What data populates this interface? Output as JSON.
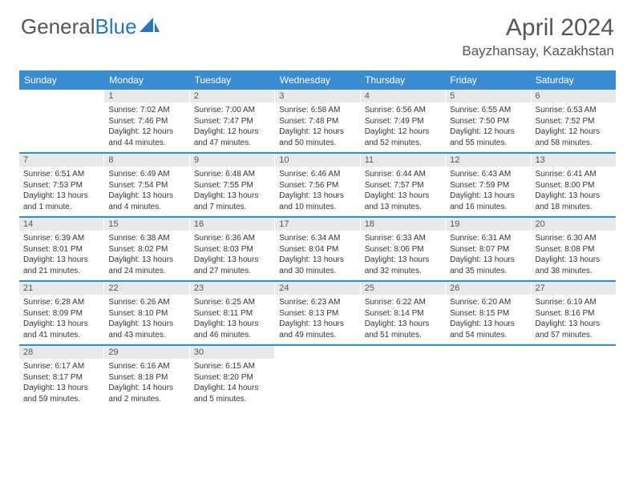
{
  "brand": {
    "part1": "General",
    "part2": "Blue"
  },
  "title": "April 2024",
  "location": "Bayzhansay, Kazakhstan",
  "colors": {
    "header_bg": "#3b8bd0",
    "header_text": "#ffffff",
    "daynum_bg": "#e8e8e8",
    "text": "#333333",
    "brand_gray": "#555555",
    "brand_blue": "#2976bb",
    "week_border": "#3b8bd0"
  },
  "typography": {
    "title_fontsize": 30,
    "location_fontsize": 17,
    "dayheader_fontsize": 12,
    "daynum_fontsize": 11,
    "cell_fontsize": 10
  },
  "day_names": [
    "Sunday",
    "Monday",
    "Tuesday",
    "Wednesday",
    "Thursday",
    "Friday",
    "Saturday"
  ],
  "weeks": [
    [
      {
        "n": "",
        "sr": "",
        "ss": "",
        "dl": ""
      },
      {
        "n": "1",
        "sr": "Sunrise: 7:02 AM",
        "ss": "Sunset: 7:46 PM",
        "dl": "Daylight: 12 hours and 44 minutes."
      },
      {
        "n": "2",
        "sr": "Sunrise: 7:00 AM",
        "ss": "Sunset: 7:47 PM",
        "dl": "Daylight: 12 hours and 47 minutes."
      },
      {
        "n": "3",
        "sr": "Sunrise: 6:58 AM",
        "ss": "Sunset: 7:48 PM",
        "dl": "Daylight: 12 hours and 50 minutes."
      },
      {
        "n": "4",
        "sr": "Sunrise: 6:56 AM",
        "ss": "Sunset: 7:49 PM",
        "dl": "Daylight: 12 hours and 52 minutes."
      },
      {
        "n": "5",
        "sr": "Sunrise: 6:55 AM",
        "ss": "Sunset: 7:50 PM",
        "dl": "Daylight: 12 hours and 55 minutes."
      },
      {
        "n": "6",
        "sr": "Sunrise: 6:53 AM",
        "ss": "Sunset: 7:52 PM",
        "dl": "Daylight: 12 hours and 58 minutes."
      }
    ],
    [
      {
        "n": "7",
        "sr": "Sunrise: 6:51 AM",
        "ss": "Sunset: 7:53 PM",
        "dl": "Daylight: 13 hours and 1 minute."
      },
      {
        "n": "8",
        "sr": "Sunrise: 6:49 AM",
        "ss": "Sunset: 7:54 PM",
        "dl": "Daylight: 13 hours and 4 minutes."
      },
      {
        "n": "9",
        "sr": "Sunrise: 6:48 AM",
        "ss": "Sunset: 7:55 PM",
        "dl": "Daylight: 13 hours and 7 minutes."
      },
      {
        "n": "10",
        "sr": "Sunrise: 6:46 AM",
        "ss": "Sunset: 7:56 PM",
        "dl": "Daylight: 13 hours and 10 minutes."
      },
      {
        "n": "11",
        "sr": "Sunrise: 6:44 AM",
        "ss": "Sunset: 7:57 PM",
        "dl": "Daylight: 13 hours and 13 minutes."
      },
      {
        "n": "12",
        "sr": "Sunrise: 6:43 AM",
        "ss": "Sunset: 7:59 PM",
        "dl": "Daylight: 13 hours and 16 minutes."
      },
      {
        "n": "13",
        "sr": "Sunrise: 6:41 AM",
        "ss": "Sunset: 8:00 PM",
        "dl": "Daylight: 13 hours and 18 minutes."
      }
    ],
    [
      {
        "n": "14",
        "sr": "Sunrise: 6:39 AM",
        "ss": "Sunset: 8:01 PM",
        "dl": "Daylight: 13 hours and 21 minutes."
      },
      {
        "n": "15",
        "sr": "Sunrise: 6:38 AM",
        "ss": "Sunset: 8:02 PM",
        "dl": "Daylight: 13 hours and 24 minutes."
      },
      {
        "n": "16",
        "sr": "Sunrise: 6:36 AM",
        "ss": "Sunset: 8:03 PM",
        "dl": "Daylight: 13 hours and 27 minutes."
      },
      {
        "n": "17",
        "sr": "Sunrise: 6:34 AM",
        "ss": "Sunset: 8:04 PM",
        "dl": "Daylight: 13 hours and 30 minutes."
      },
      {
        "n": "18",
        "sr": "Sunrise: 6:33 AM",
        "ss": "Sunset: 8:06 PM",
        "dl": "Daylight: 13 hours and 32 minutes."
      },
      {
        "n": "19",
        "sr": "Sunrise: 6:31 AM",
        "ss": "Sunset: 8:07 PM",
        "dl": "Daylight: 13 hours and 35 minutes."
      },
      {
        "n": "20",
        "sr": "Sunrise: 6:30 AM",
        "ss": "Sunset: 8:08 PM",
        "dl": "Daylight: 13 hours and 38 minutes."
      }
    ],
    [
      {
        "n": "21",
        "sr": "Sunrise: 6:28 AM",
        "ss": "Sunset: 8:09 PM",
        "dl": "Daylight: 13 hours and 41 minutes."
      },
      {
        "n": "22",
        "sr": "Sunrise: 6:26 AM",
        "ss": "Sunset: 8:10 PM",
        "dl": "Daylight: 13 hours and 43 minutes."
      },
      {
        "n": "23",
        "sr": "Sunrise: 6:25 AM",
        "ss": "Sunset: 8:11 PM",
        "dl": "Daylight: 13 hours and 46 minutes."
      },
      {
        "n": "24",
        "sr": "Sunrise: 6:23 AM",
        "ss": "Sunset: 8:13 PM",
        "dl": "Daylight: 13 hours and 49 minutes."
      },
      {
        "n": "25",
        "sr": "Sunrise: 6:22 AM",
        "ss": "Sunset: 8:14 PM",
        "dl": "Daylight: 13 hours and 51 minutes."
      },
      {
        "n": "26",
        "sr": "Sunrise: 6:20 AM",
        "ss": "Sunset: 8:15 PM",
        "dl": "Daylight: 13 hours and 54 minutes."
      },
      {
        "n": "27",
        "sr": "Sunrise: 6:19 AM",
        "ss": "Sunset: 8:16 PM",
        "dl": "Daylight: 13 hours and 57 minutes."
      }
    ],
    [
      {
        "n": "28",
        "sr": "Sunrise: 6:17 AM",
        "ss": "Sunset: 8:17 PM",
        "dl": "Daylight: 13 hours and 59 minutes."
      },
      {
        "n": "29",
        "sr": "Sunrise: 6:16 AM",
        "ss": "Sunset: 8:18 PM",
        "dl": "Daylight: 14 hours and 2 minutes."
      },
      {
        "n": "30",
        "sr": "Sunrise: 6:15 AM",
        "ss": "Sunset: 8:20 PM",
        "dl": "Daylight: 14 hours and 5 minutes."
      },
      {
        "n": "",
        "sr": "",
        "ss": "",
        "dl": ""
      },
      {
        "n": "",
        "sr": "",
        "ss": "",
        "dl": ""
      },
      {
        "n": "",
        "sr": "",
        "ss": "",
        "dl": ""
      },
      {
        "n": "",
        "sr": "",
        "ss": "",
        "dl": ""
      }
    ]
  ]
}
